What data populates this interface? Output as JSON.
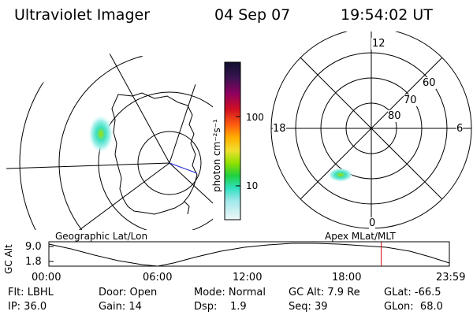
{
  "header": {
    "title": "Ultraviolet Imager",
    "date": "04 Sep 07",
    "time": "19:54:02 UT"
  },
  "left_map": {
    "label": "Geographic Lat/Lon"
  },
  "right_map": {
    "label": "Apex MLat/MLT",
    "mlt_labels": {
      "top": "12",
      "left": "18",
      "right": "6",
      "bottom": "0"
    },
    "mlat_labels": [
      "60",
      "70",
      "80"
    ]
  },
  "colorbar": {
    "label": "photon cm⁻²s⁻¹",
    "ticks": [
      "100",
      "10"
    ]
  },
  "timeline": {
    "ylabel": "GC Alt",
    "y_ticks": [
      "9.0",
      "1.8"
    ],
    "x_ticks": [
      "00:00",
      "06:00",
      "12:00",
      "18:00",
      "23:59"
    ],
    "current_time_fraction": 0.83
  },
  "status": {
    "row1": [
      "Flt: LBHL",
      "Door: Open",
      "Mode: Normal",
      "GC Alt: 7.9 Re",
      "GLat: -66.5"
    ],
    "row2": [
      "IP: 36.0",
      "Gain: 14",
      "Dsp:    1.9",
      "Seq: 39",
      "GLon:  68.0"
    ]
  },
  "colors": {
    "marker": "#dd0000",
    "emission_peak": "#8ee000",
    "emission_mid": "#2fe0c8",
    "emission_low": "#c8f0f0"
  }
}
